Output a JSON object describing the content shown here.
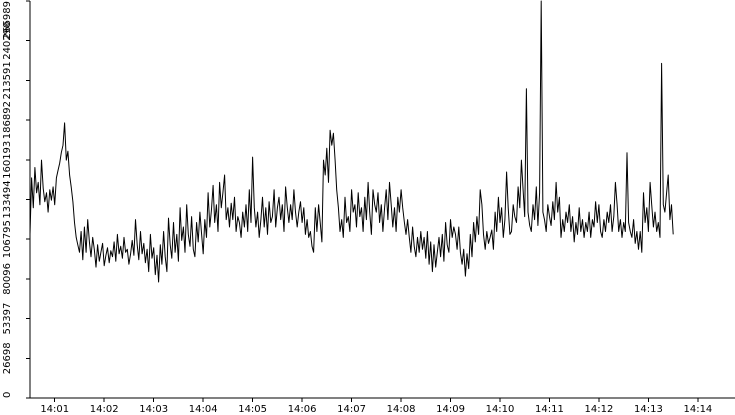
{
  "chart_data": {
    "type": "line",
    "title": "",
    "xlabel": "",
    "ylabel": "",
    "grid": false,
    "legend": "none",
    "colors": {
      "line": "#000000",
      "axis": "#000000",
      "background": "#ffffff"
    },
    "ylim": [
      0,
      266989
    ],
    "xlim": [
      "14:00:30",
      "14:14:45"
    ],
    "y_ticks": [
      0,
      26698,
      53397,
      80096,
      106795,
      133494,
      160193,
      186892,
      213591,
      240290,
      266989
    ],
    "x_ticks": [
      "14:01",
      "14:02",
      "14:03",
      "14:04",
      "14:05",
      "14:06",
      "14:07",
      "14:08",
      "14:09",
      "14:10",
      "14:11",
      "14:12",
      "14:13",
      "14:14"
    ],
    "series": [
      {
        "x_start": "14:00:30",
        "step_seconds": 2,
        "values": [
          110000,
          148000,
          128000,
          155000,
          138000,
          145000,
          130000,
          160000,
          141000,
          132000,
          138000,
          125000,
          140000,
          133000,
          142000,
          130000,
          148000,
          153000,
          158000,
          165000,
          170000,
          185000,
          160000,
          166000,
          150000,
          142000,
          132000,
          118000,
          108000,
          103000,
          98000,
          112000,
          93000,
          115000,
          98000,
          120000,
          105000,
          95000,
          108000,
          100000,
          88000,
          103000,
          92000,
          98000,
          104000,
          89000,
          96000,
          101000,
          91000,
          99000,
          95000,
          105000,
          92000,
          110000,
          97000,
          102000,
          94000,
          108000,
          98000,
          100000,
          90000,
          97000,
          106000,
          96000,
          120000,
          103000,
          93000,
          112000,
          97000,
          104000,
          91000,
          100000,
          85000,
          110000,
          94000,
          101000,
          83000,
          96000,
          78000,
          103000,
          90000,
          112000,
          95000,
          85000,
          121000,
          103000,
          94000,
          118000,
          98000,
          110000,
          92000,
          128000,
          106000,
          115000,
          98000,
          130000,
          110000,
          102000,
          122000,
          100000,
          95000,
          118000,
          105000,
          125000,
          111000,
          97000,
          120000,
          108000,
          138000,
          115000,
          126000,
          143000,
          118000,
          130000,
          112000,
          145000,
          128000,
          138000,
          150000,
          120000,
          128000,
          115000,
          131000,
          120000,
          135000,
          112000,
          122000,
          118000,
          108000,
          125000,
          115000,
          130000,
          112000,
          140000,
          118000,
          162000,
          128000,
          115000,
          125000,
          108000,
          120000,
          135000,
          115000,
          128000,
          110000,
          132000,
          118000,
          122000,
          140000,
          115000,
          128000,
          135000,
          120000,
          130000,
          112000,
          142000,
          128000,
          118000,
          130000,
          120000,
          140000,
          125000,
          115000,
          125000,
          132000,
          118000,
          128000,
          110000,
          120000,
          108000,
          112000,
          102000,
          98000,
          128000,
          112000,
          130000,
          118000,
          105000,
          160000,
          150000,
          168000,
          145000,
          180000,
          170000,
          178000,
          160000,
          140000,
          128000,
          112000,
          120000,
          108000,
          135000,
          118000,
          122000,
          112000,
          140000,
          125000,
          130000,
          115000,
          138000,
          122000,
          128000,
          112000,
          135000,
          120000,
          145000,
          125000,
          110000,
          140000,
          130000,
          125000,
          138000,
          118000,
          130000,
          112000,
          128000,
          140000,
          120000,
          145000,
          130000,
          115000,
          128000,
          112000,
          135000,
          125000,
          140000,
          128000,
          118000,
          110000,
          120000,
          108000,
          98000,
          115000,
          102000,
          95000,
          108000,
          98000,
          112000,
          100000,
          108000,
          94000,
          112000,
          90000,
          105000,
          85000,
          103000,
          88000,
          98000,
          108000,
          95000,
          110000,
          92000,
          118000,
          103000,
          98000,
          120000,
          108000,
          115000,
          110000,
          100000,
          115000,
          98000,
          90000,
          100000,
          82000,
          97000,
          87000,
          110000,
          95000,
          118000,
          105000,
          122000,
          110000,
          140000,
          130000,
          110000,
          100000,
          112000,
          104000,
          108000,
          113000,
          100000,
          125000,
          112000,
          135000,
          118000,
          128000,
          108000,
          120000,
          152000,
          128000,
          110000,
          112000,
          130000,
          122000,
          118000,
          142000,
          128000,
          160000,
          140000,
          122000,
          208000,
          125000,
          116000,
          112000,
          130000,
          120000,
          142000,
          116000,
          138000,
          266989,
          125000,
          120000,
          112000,
          130000,
          122000,
          116000,
          132000,
          120000,
          145000,
          125000,
          135000,
          108000,
          120000,
          112000,
          125000,
          118000,
          130000,
          112000,
          122000,
          105000,
          118000,
          110000,
          128000,
          112000,
          120000,
          108000,
          118000,
          112000,
          125000,
          108000,
          120000,
          115000,
          132000,
          118000,
          130000,
          112000,
          108000,
          120000,
          112000,
          125000,
          118000,
          130000,
          112000,
          122000,
          145000,
          130000,
          112000,
          120000,
          108000,
          118000,
          112000,
          165000,
          118000,
          112000,
          108000,
          120000,
          104000,
          112000,
          100000,
          112000,
          98000,
          138000,
          118000,
          128000,
          112000,
          145000,
          130000,
          115000,
          125000,
          112000,
          118000,
          108000,
          225000,
          130000,
          125000,
          138000,
          150000,
          120000,
          130000,
          110000
        ]
      }
    ]
  }
}
